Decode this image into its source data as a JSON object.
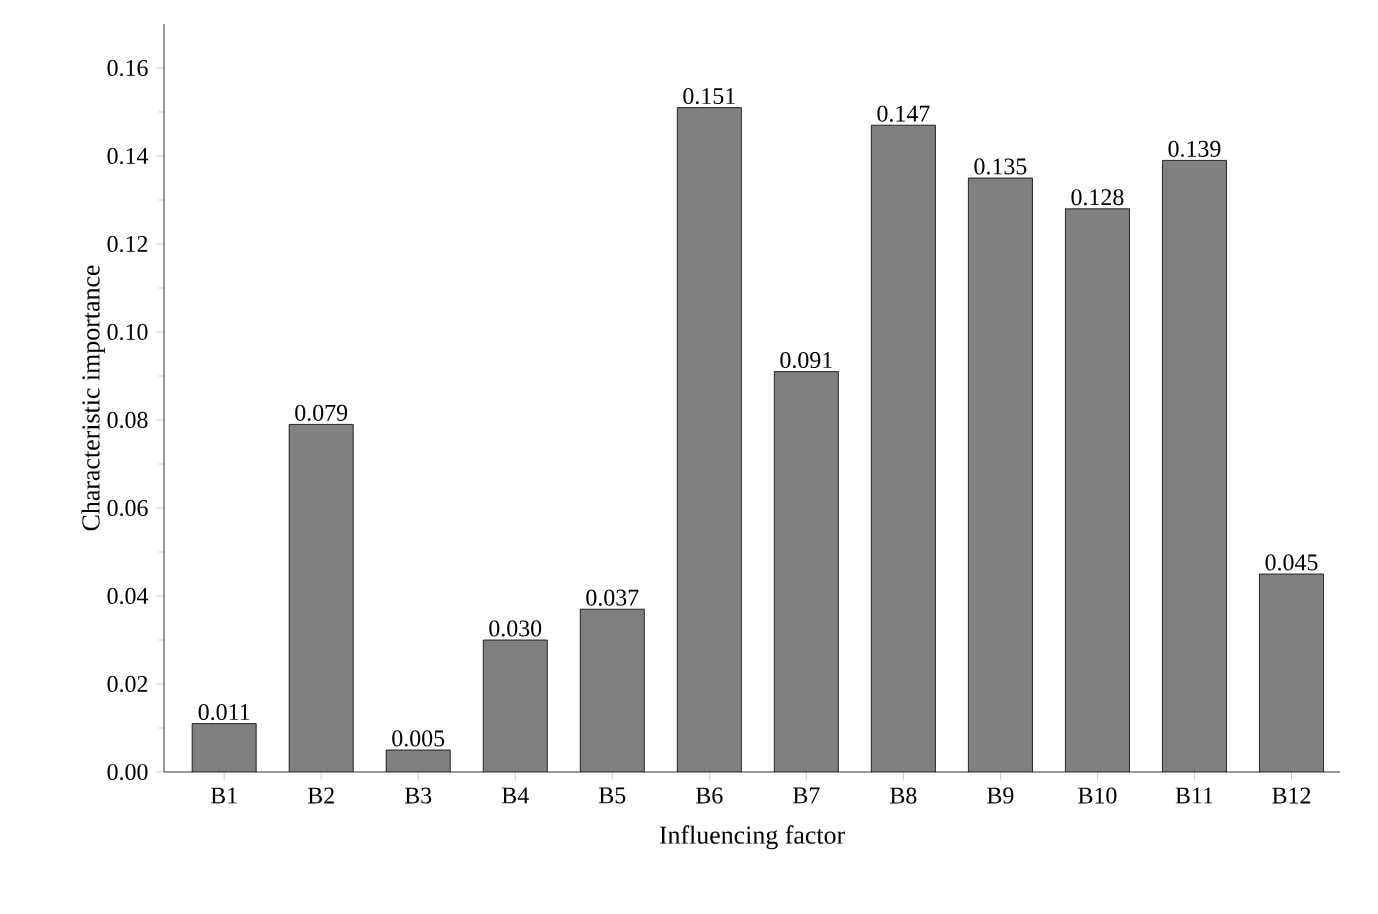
{
  "chart_data": {
    "type": "bar",
    "xlabel": "Influencing factor",
    "ylabel": "Characteristic importance",
    "categories": [
      "B1",
      "B2",
      "B3",
      "B4",
      "B5",
      "B6",
      "B7",
      "B8",
      "B9",
      "B10",
      "B11",
      "B12"
    ],
    "values": [
      0.011,
      0.079,
      0.005,
      0.03,
      0.037,
      0.151,
      0.091,
      0.147,
      0.135,
      0.128,
      0.139,
      0.045
    ],
    "value_labels": [
      "0.011",
      "0.079",
      "0.005",
      "0.030",
      "0.037",
      "0.151",
      "0.091",
      "0.147",
      "0.135",
      "0.128",
      "0.139",
      "0.045"
    ],
    "color": "#808080",
    "ylim": [
      0,
      0.17
    ],
    "yticks": [
      {
        "value": 0,
        "label": "0.00"
      },
      {
        "value": 0.02,
        "label": "0.02"
      },
      {
        "value": 0.04,
        "label": "0.04"
      },
      {
        "value": 0.06,
        "label": "0.06"
      },
      {
        "value": 0.08,
        "label": "0.08"
      },
      {
        "value": 0.1,
        "label": "0.10"
      },
      {
        "value": 0.12,
        "label": "0.12"
      },
      {
        "value": 0.14,
        "label": "0.14"
      },
      {
        "value": 0.16,
        "label": "0.16"
      }
    ]
  }
}
